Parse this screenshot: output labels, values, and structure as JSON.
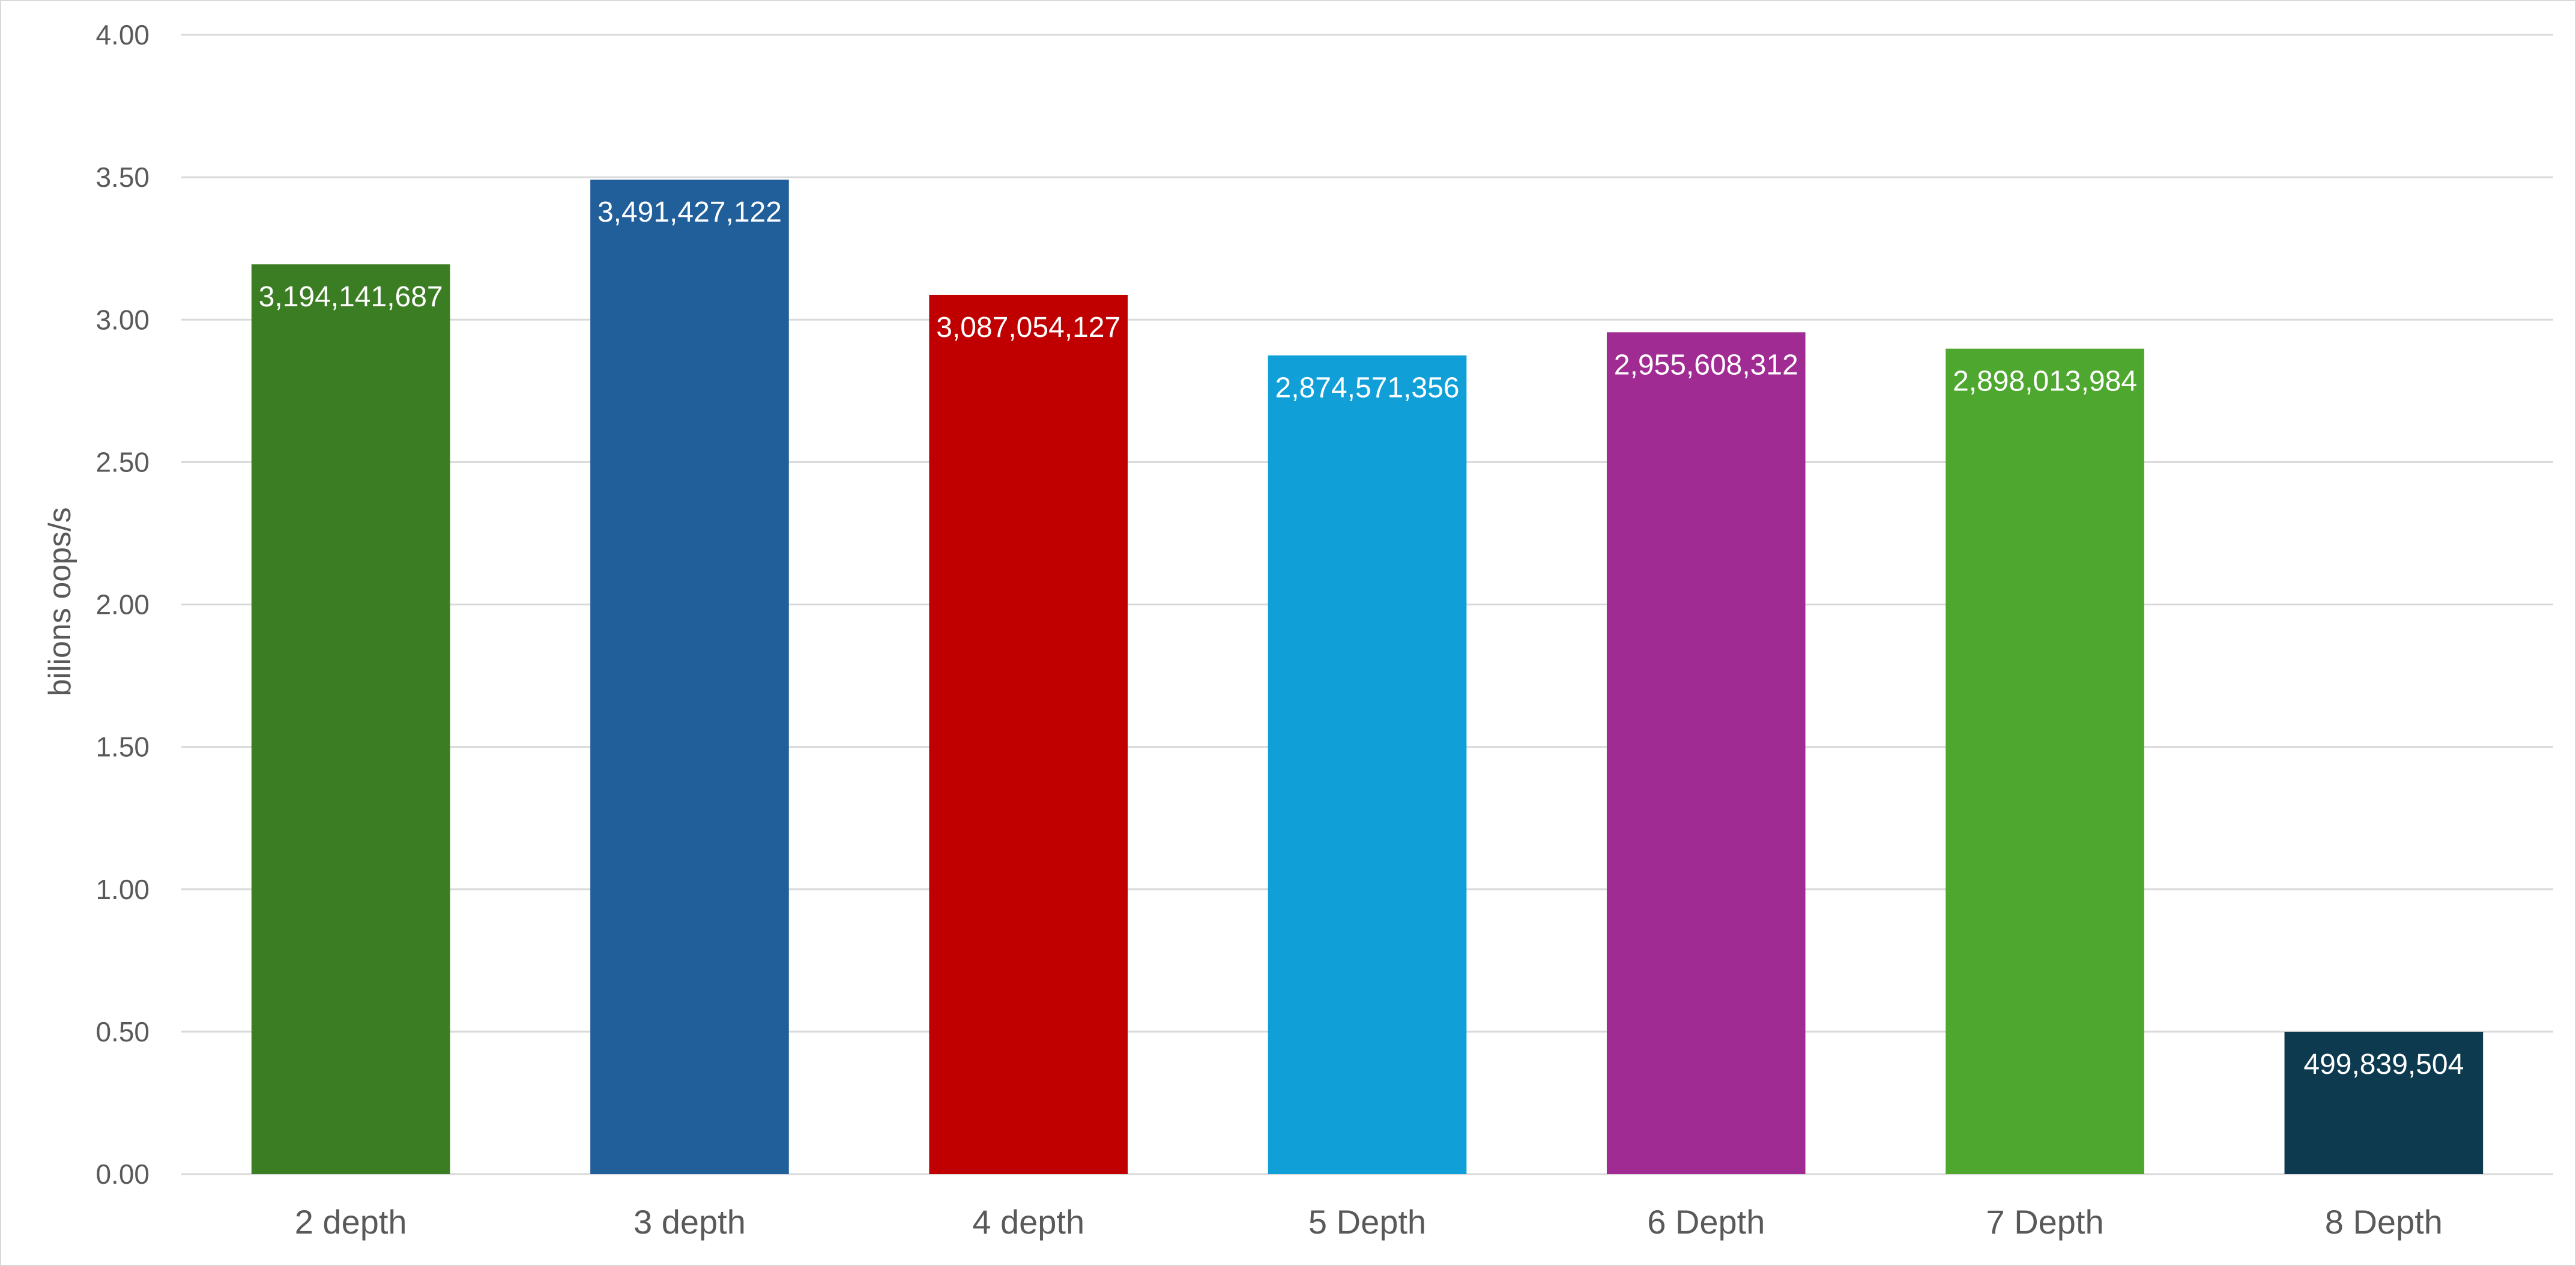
{
  "chart_data": {
    "type": "bar",
    "title": "",
    "xlabel": "",
    "ylabel": "bilions oops/s",
    "ylim": [
      0,
      4
    ],
    "yticks": [
      "0.00",
      "0.50",
      "1.00",
      "1.50",
      "2.00",
      "2.50",
      "3.00",
      "3.50",
      "4.00"
    ],
    "grid": true,
    "legend": "none",
    "categories": [
      "2 depth",
      "3 depth",
      "4 depth",
      "5 Depth",
      "6 Depth",
      "7 Depth",
      "8 Depth"
    ],
    "values": [
      3.194141687,
      3.491427122,
      3.087054127,
      2.874571356,
      2.955608312,
      2.898013984,
      0.499839504
    ],
    "data_labels": [
      "3,194,141,687",
      "3,491,427,122",
      "3,087,054,127",
      "2,874,571,356",
      "2,955,608,312",
      "2,898,013,984",
      "499,839,504"
    ],
    "colors": [
      "#3b7d23",
      "#215f9a",
      "#c00000",
      "#119fd8",
      "#a02b93",
      "#4ea72e",
      "#0e3a50"
    ]
  }
}
